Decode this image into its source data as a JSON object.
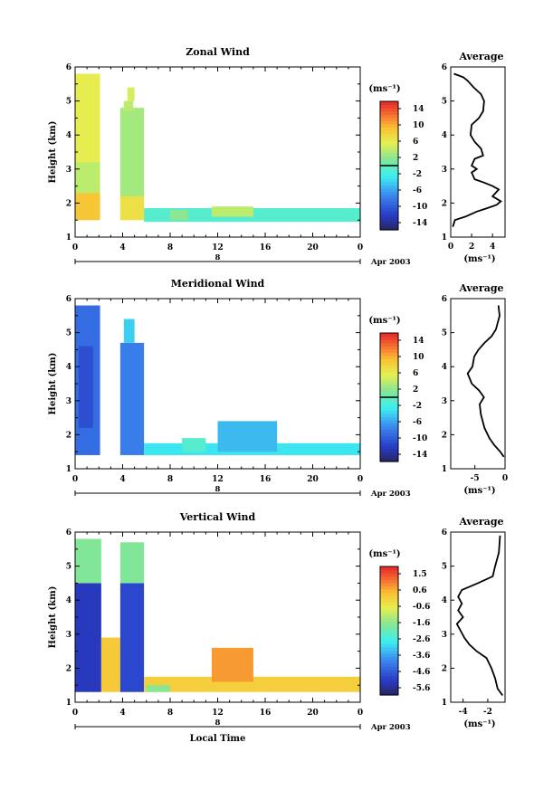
{
  "chart_data": [
    {
      "type": "heatmap",
      "title": "Zonal Wind",
      "ylabel": "Height (km)",
      "xlabel": "",
      "x_ticks": [
        "0",
        "4",
        "8",
        "12",
        "16",
        "20",
        "0"
      ],
      "xlim": [
        0,
        24
      ],
      "y_ticks": [
        "1",
        "2",
        "3",
        "4",
        "5",
        "6"
      ],
      "ylim": [
        1,
        6
      ],
      "date_label": "Apr 2003",
      "day_marker": "8",
      "colorbar": {
        "unit_label": "(ms⁻¹)",
        "ticks": [
          "14",
          "10",
          "6",
          "2",
          "-2",
          "-6",
          "-10",
          "-14"
        ],
        "range": [
          -16,
          16
        ],
        "marked_level": "0"
      },
      "regions": [
        {
          "t0": 0.0,
          "t1": 2.1,
          "h0": 1.5,
          "h1": 5.8,
          "value": 6
        },
        {
          "t0": 0.0,
          "t1": 2.1,
          "h0": 1.5,
          "h1": 2.3,
          "value": 9
        },
        {
          "t0": 0.0,
          "t1": 2.1,
          "h0": 2.3,
          "h1": 3.2,
          "value": 4
        },
        {
          "t0": 3.8,
          "t1": 5.8,
          "h0": 1.5,
          "h1": 4.8,
          "value": 3
        },
        {
          "t0": 3.8,
          "t1": 5.8,
          "h0": 1.5,
          "h1": 2.2,
          "value": 7
        },
        {
          "t0": 4.1,
          "t1": 4.9,
          "h0": 4.7,
          "h1": 5.0,
          "value": 4
        },
        {
          "t0": 4.4,
          "t1": 5.0,
          "h0": 5.0,
          "h1": 5.4,
          "value": 5
        },
        {
          "t0": 5.8,
          "t1": 24.0,
          "h0": 1.45,
          "h1": 1.85,
          "value": -1
        },
        {
          "t0": 11.5,
          "t1": 15.0,
          "h0": 1.6,
          "h1": 1.9,
          "value": 4
        },
        {
          "t0": 8.0,
          "t1": 9.5,
          "h0": 1.5,
          "h1": 1.8,
          "value": 2
        }
      ],
      "average_profile": {
        "title": "Average",
        "xlabel": "(ms⁻¹)",
        "x_ticks": [
          "0",
          "2",
          "4"
        ],
        "xlim": [
          0,
          5.2
        ],
        "y_ticks": [
          "1",
          "2",
          "3",
          "4",
          "5",
          "6"
        ],
        "ylim": [
          1,
          6
        ],
        "points": [
          [
            0.2,
            1.3
          ],
          [
            0.4,
            1.5
          ],
          [
            1.4,
            1.6
          ],
          [
            2.5,
            1.75
          ],
          [
            3.5,
            1.85
          ],
          [
            4.4,
            1.95
          ],
          [
            4.8,
            2.05
          ],
          [
            4.0,
            2.2
          ],
          [
            4.6,
            2.4
          ],
          [
            4.0,
            2.5
          ],
          [
            3.2,
            2.6
          ],
          [
            2.3,
            2.7
          ],
          [
            2.0,
            2.9
          ],
          [
            2.5,
            3.0
          ],
          [
            2.0,
            3.1
          ],
          [
            2.3,
            3.3
          ],
          [
            3.1,
            3.4
          ],
          [
            2.9,
            3.6
          ],
          [
            2.3,
            3.8
          ],
          [
            1.9,
            4.0
          ],
          [
            2.0,
            4.3
          ],
          [
            2.7,
            4.5
          ],
          [
            3.1,
            4.7
          ],
          [
            3.2,
            5.0
          ],
          [
            2.9,
            5.2
          ],
          [
            2.2,
            5.4
          ],
          [
            1.6,
            5.6
          ],
          [
            1.2,
            5.7
          ],
          [
            0.3,
            5.8
          ]
        ]
      }
    },
    {
      "type": "heatmap",
      "title": "Meridional Wind",
      "ylabel": "Height (km)",
      "xlabel": "",
      "x_ticks": [
        "0",
        "4",
        "8",
        "12",
        "16",
        "20",
        "0"
      ],
      "xlim": [
        0,
        24
      ],
      "y_ticks": [
        "1",
        "2",
        "3",
        "4",
        "5",
        "6"
      ],
      "ylim": [
        1,
        6
      ],
      "date_label": "Apr 2003",
      "day_marker": "8",
      "colorbar": {
        "unit_label": "(ms⁻¹)",
        "ticks": [
          "14",
          "10",
          "6",
          "2",
          "-2",
          "-6",
          "-10",
          "-14"
        ],
        "range": [
          -16,
          16
        ],
        "marked_level": "0"
      },
      "regions": [
        {
          "t0": 0.0,
          "t1": 2.1,
          "h0": 1.4,
          "h1": 5.8,
          "value": -9
        },
        {
          "t0": 0.3,
          "t1": 1.5,
          "h0": 2.2,
          "h1": 4.6,
          "value": -11
        },
        {
          "t0": 3.8,
          "t1": 5.8,
          "h0": 1.4,
          "h1": 4.7,
          "value": -8
        },
        {
          "t0": 4.1,
          "t1": 5.0,
          "h0": 4.7,
          "h1": 5.4,
          "value": -4
        },
        {
          "t0": 5.8,
          "t1": 24.0,
          "h0": 1.4,
          "h1": 1.75,
          "value": -3
        },
        {
          "t0": 12.0,
          "t1": 17.0,
          "h0": 1.5,
          "h1": 2.4,
          "value": -5
        },
        {
          "t0": 9.0,
          "t1": 11.0,
          "h0": 1.5,
          "h1": 1.9,
          "value": -1
        }
      ],
      "average_profile": {
        "title": "Average",
        "xlabel": "(ms⁻¹)",
        "x_ticks": [
          "-5",
          "0"
        ],
        "xlim": [
          -9,
          0
        ],
        "y_ticks": [
          "1",
          "2",
          "3",
          "4",
          "5",
          "6"
        ],
        "ylim": [
          1,
          6
        ],
        "points": [
          [
            -0.2,
            1.35
          ],
          [
            -0.8,
            1.5
          ],
          [
            -1.8,
            1.7
          ],
          [
            -2.6,
            1.9
          ],
          [
            -3.4,
            2.2
          ],
          [
            -4.0,
            2.6
          ],
          [
            -4.2,
            2.9
          ],
          [
            -3.5,
            3.1
          ],
          [
            -4.3,
            3.3
          ],
          [
            -5.5,
            3.5
          ],
          [
            -6.2,
            3.8
          ],
          [
            -5.4,
            4.0
          ],
          [
            -5.1,
            4.3
          ],
          [
            -4.4,
            4.5
          ],
          [
            -3.4,
            4.7
          ],
          [
            -2.2,
            4.9
          ],
          [
            -1.5,
            5.1
          ],
          [
            -0.9,
            5.5
          ],
          [
            -1.1,
            5.8
          ]
        ]
      }
    },
    {
      "type": "heatmap",
      "title": "Vertical Wind",
      "ylabel": "Height (km)",
      "xlabel": "Local Time",
      "x_ticks": [
        "0",
        "4",
        "8",
        "12",
        "16",
        "20",
        "0"
      ],
      "xlim": [
        0,
        24
      ],
      "y_ticks": [
        "1",
        "2",
        "3",
        "4",
        "5",
        "6"
      ],
      "ylim": [
        1,
        6
      ],
      "date_label": "Apr 2003",
      "day_marker": "8",
      "colorbar": {
        "unit_label": "(ms⁻¹)",
        "ticks": [
          "1.5",
          "0.6",
          "-0.6",
          "-1.6",
          "-2.6",
          "-3.6",
          "-4.6",
          "-5.6"
        ],
        "range": [
          -6.2,
          2.2
        ],
        "marked_level": ""
      },
      "regions": [
        {
          "t0": 0.0,
          "t1": 2.2,
          "h0": 1.3,
          "h1": 4.5,
          "value": -5.3
        },
        {
          "t0": 0.0,
          "t1": 2.2,
          "h0": 4.5,
          "h1": 5.8,
          "value": -1.6
        },
        {
          "t0": 2.2,
          "t1": 3.8,
          "h0": 1.3,
          "h1": 2.9,
          "value": 0.3
        },
        {
          "t0": 3.8,
          "t1": 5.8,
          "h0": 1.3,
          "h1": 4.5,
          "value": -5.0
        },
        {
          "t0": 3.8,
          "t1": 5.8,
          "h0": 4.5,
          "h1": 5.7,
          "value": -1.6
        },
        {
          "t0": 5.8,
          "t1": 24.0,
          "h0": 1.3,
          "h1": 1.75,
          "value": 0.2
        },
        {
          "t0": 11.5,
          "t1": 15.0,
          "h0": 1.6,
          "h1": 2.6,
          "value": 0.9
        },
        {
          "t0": 6.0,
          "t1": 8.0,
          "h0": 1.3,
          "h1": 1.5,
          "value": -1.5
        }
      ],
      "average_profile": {
        "title": "Average",
        "xlabel": "(ms⁻¹)",
        "x_ticks": [
          "-4",
          "-2"
        ],
        "xlim": [
          -5.0,
          -0.6
        ],
        "y_ticks": [
          "1",
          "2",
          "3",
          "4",
          "5",
          "6"
        ],
        "ylim": [
          1,
          6
        ],
        "points": [
          [
            -0.8,
            1.2
          ],
          [
            -1.2,
            1.4
          ],
          [
            -1.4,
            1.7
          ],
          [
            -1.7,
            2.0
          ],
          [
            -2.1,
            2.3
          ],
          [
            -2.9,
            2.5
          ],
          [
            -3.5,
            2.7
          ],
          [
            -3.9,
            2.9
          ],
          [
            -4.2,
            3.1
          ],
          [
            -4.5,
            3.3
          ],
          [
            -4.0,
            3.5
          ],
          [
            -4.4,
            3.7
          ],
          [
            -4.1,
            3.9
          ],
          [
            -4.4,
            4.1
          ],
          [
            -4.1,
            4.3
          ],
          [
            -2.8,
            4.5
          ],
          [
            -1.6,
            4.7
          ],
          [
            -1.4,
            5.0
          ],
          [
            -1.1,
            5.4
          ],
          [
            -1.0,
            5.9
          ]
        ]
      }
    }
  ]
}
